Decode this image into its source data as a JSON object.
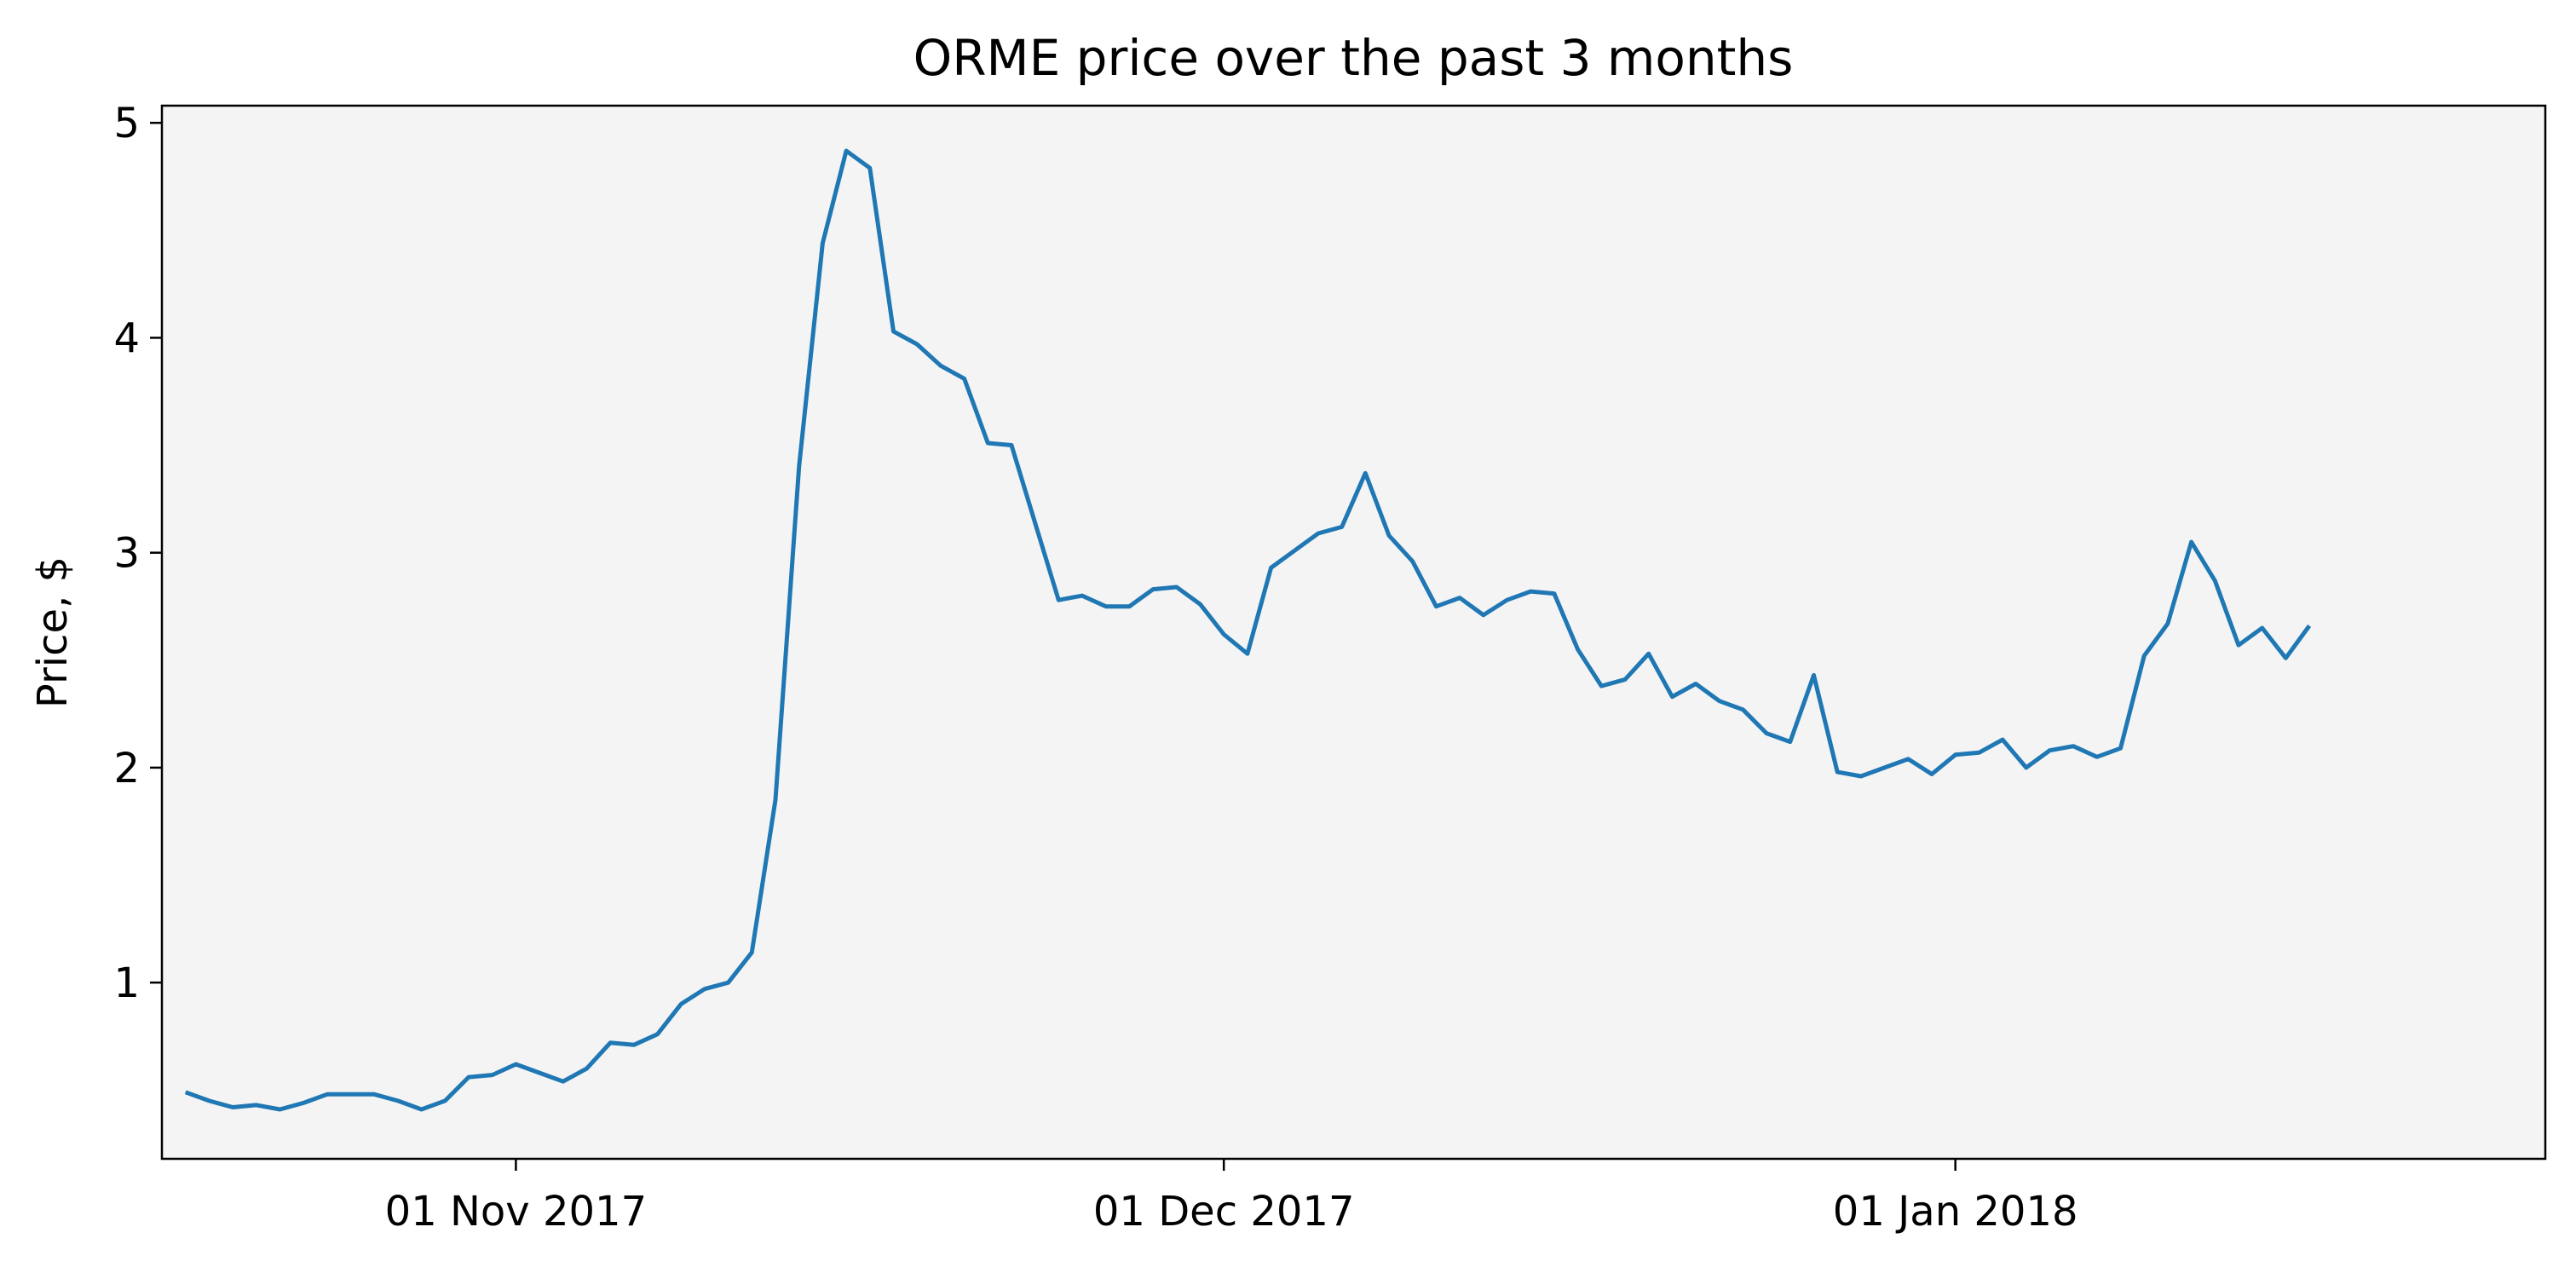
{
  "chart_data": {
    "type": "line",
    "title": "ORME price over the past 3 months",
    "xlabel": "",
    "ylabel": "Price, $",
    "x_type": "date",
    "x_range": [
      "2017-10-17",
      "2018-01-26"
    ],
    "ylim": [
      0.18,
      5.08
    ],
    "grid": false,
    "legend": "none",
    "colors": {
      "line": "#1f77b4",
      "plot_background": "#f4f4f4",
      "axes": "#000000"
    },
    "xticks": [
      {
        "date": "2017-11-01",
        "label": "01 Nov 2017"
      },
      {
        "date": "2017-12-01",
        "label": "01 Dec 2017"
      },
      {
        "date": "2018-01-01",
        "label": "01 Jan 2018"
      }
    ],
    "yticks": [
      1,
      2,
      3,
      4,
      5
    ],
    "series": [
      {
        "x_start": "2017-10-18",
        "x_step_days": 1,
        "values": [
          0.49,
          0.45,
          0.42,
          0.43,
          0.41,
          0.44,
          0.48,
          0.48,
          0.48,
          0.45,
          0.41,
          0.45,
          0.56,
          0.57,
          0.62,
          0.58,
          0.54,
          0.6,
          0.72,
          0.71,
          0.76,
          0.9,
          0.97,
          1.0,
          1.14,
          1.85,
          3.4,
          4.44,
          4.87,
          4.79,
          4.03,
          3.97,
          3.87,
          3.81,
          3.51,
          3.5,
          3.14,
          2.78,
          2.8,
          2.75,
          2.75,
          2.83,
          2.84,
          2.76,
          2.62,
          2.53,
          2.93,
          3.01,
          3.09,
          3.12,
          3.37,
          3.08,
          2.96,
          2.75,
          2.79,
          2.71,
          2.78,
          2.82,
          2.81,
          2.55,
          2.38,
          2.41,
          2.53,
          2.33,
          2.39,
          2.31,
          2.27,
          2.16,
          2.12,
          2.43,
          1.98,
          1.96,
          2.0,
          2.04,
          1.97,
          2.06,
          2.07,
          2.13,
          2.0,
          2.08,
          2.1,
          2.05,
          2.09,
          2.52,
          2.67,
          3.05,
          2.87,
          2.57,
          2.65,
          2.51,
          2.66
        ]
      }
    ]
  }
}
